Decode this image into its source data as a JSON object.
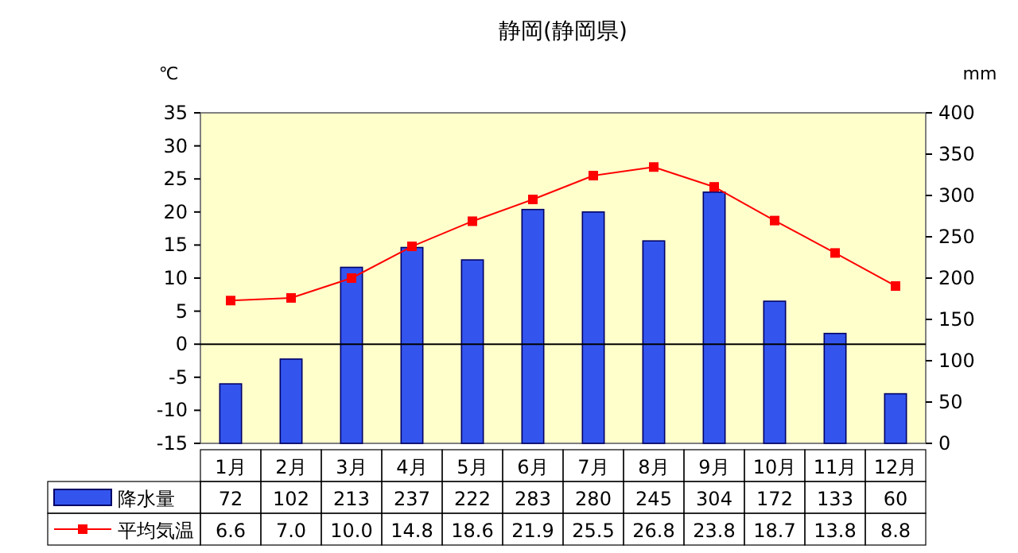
{
  "chart_data": {
    "type": "bar",
    "title": "静岡(静岡県)",
    "ylabel": "℃",
    "y2label": "mm",
    "categories": [
      "1月",
      "2月",
      "3月",
      "4月",
      "5月",
      "6月",
      "7月",
      "8月",
      "9月",
      "10月",
      "11月",
      "12月"
    ],
    "series": [
      {
        "name": "降水量",
        "axis": "y2",
        "color": "#3355ee",
        "values": [
          72,
          102,
          213,
          237,
          222,
          283,
          280,
          245,
          304,
          172,
          133,
          60
        ],
        "value_labels": [
          "72",
          "102",
          "213",
          "237",
          "222",
          "283",
          "280",
          "245",
          "304",
          "172",
          "133",
          "60"
        ]
      },
      {
        "name": "平均気温",
        "type": "line",
        "color": "#ff0000",
        "marker": "square",
        "values": [
          6.6,
          7.0,
          10.0,
          14.8,
          18.6,
          21.9,
          25.5,
          26.8,
          23.8,
          18.7,
          13.8,
          8.8
        ],
        "value_labels": [
          "6.6",
          "7.0",
          "10.0",
          "14.8",
          "18.6",
          "21.9",
          "25.5",
          "26.8",
          "23.8",
          "18.7",
          "13.8",
          "8.8"
        ]
      }
    ],
    "ylim": [
      -15,
      35
    ],
    "yticks": [
      -15,
      -10,
      -5,
      0,
      5,
      10,
      15,
      20,
      25,
      30,
      35
    ],
    "y2lim": [
      0,
      400
    ],
    "y2ticks": [
      0,
      50,
      100,
      150,
      200,
      250,
      300,
      350,
      400
    ],
    "ref_lines": [
      {
        "axis": "y",
        "value": 0,
        "color": "#000000"
      }
    ],
    "grid": false,
    "legend": "bottom"
  }
}
